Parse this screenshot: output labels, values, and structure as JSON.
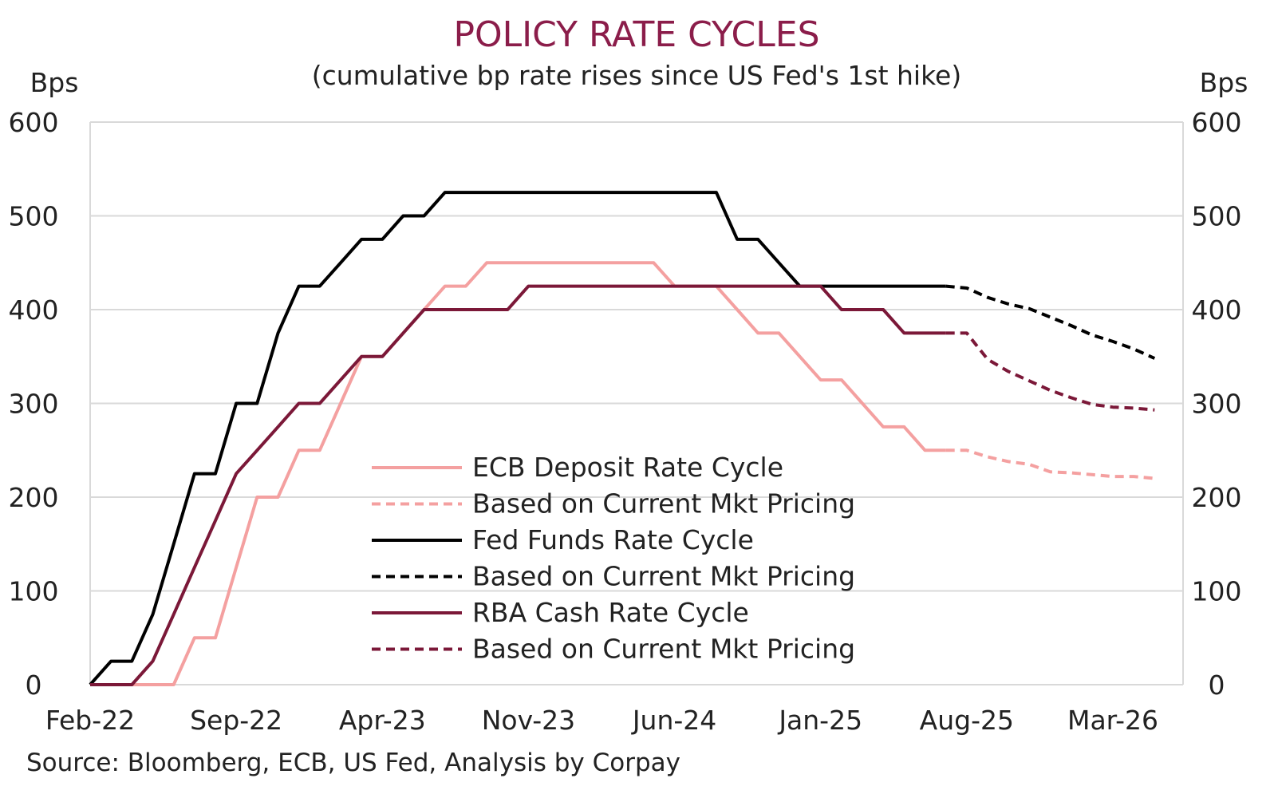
{
  "chart_data": {
    "type": "line",
    "title": "POLICY RATE CYCLES",
    "subtitle": "(cumulative bp rate rises since US Fed's 1st hike)",
    "ylabel_left": "Bps",
    "ylabel_right": "Bps",
    "ylim": [
      0,
      600
    ],
    "yticks": [
      0,
      100,
      200,
      300,
      400,
      500,
      600
    ],
    "xlim": [
      "2022-02",
      "2026-05"
    ],
    "xticks": [
      "Feb-22",
      "Sep-22",
      "Apr-23",
      "Nov-23",
      "Jun-24",
      "Jan-25",
      "Aug-25",
      "Mar-26"
    ],
    "grid": true,
    "legend_position": "center-bottom",
    "source": "Source: Bloomberg, ECB, US Fed, Analysis by Corpay",
    "series": [
      {
        "name": "ECB Deposit Rate Cycle",
        "color": "#f4a0a0",
        "style": "solid",
        "points": [
          [
            "2022-02",
            0
          ],
          [
            "2022-03",
            0
          ],
          [
            "2022-04",
            0
          ],
          [
            "2022-05",
            0
          ],
          [
            "2022-06",
            0
          ],
          [
            "2022-07",
            50
          ],
          [
            "2022-08",
            50
          ],
          [
            "2022-09",
            125
          ],
          [
            "2022-10",
            200
          ],
          [
            "2022-11",
            200
          ],
          [
            "2022-12",
            250
          ],
          [
            "2023-01",
            250
          ],
          [
            "2023-02",
            300
          ],
          [
            "2023-03",
            350
          ],
          [
            "2023-04",
            350
          ],
          [
            "2023-05",
            375
          ],
          [
            "2023-06",
            400
          ],
          [
            "2023-07",
            425
          ],
          [
            "2023-08",
            425
          ],
          [
            "2023-09",
            450
          ],
          [
            "2023-10",
            450
          ],
          [
            "2023-11",
            450
          ],
          [
            "2023-12",
            450
          ],
          [
            "2024-01",
            450
          ],
          [
            "2024-02",
            450
          ],
          [
            "2024-03",
            450
          ],
          [
            "2024-04",
            450
          ],
          [
            "2024-05",
            450
          ],
          [
            "2024-06",
            425
          ],
          [
            "2024-07",
            425
          ],
          [
            "2024-08",
            425
          ],
          [
            "2024-09",
            400
          ],
          [
            "2024-10",
            375
          ],
          [
            "2024-11",
            375
          ],
          [
            "2024-12",
            350
          ],
          [
            "2025-01",
            325
          ],
          [
            "2025-02",
            325
          ],
          [
            "2025-03",
            300
          ],
          [
            "2025-04",
            275
          ],
          [
            "2025-05",
            275
          ],
          [
            "2025-06",
            250
          ],
          [
            "2025-07",
            250
          ]
        ]
      },
      {
        "name": "Based on Current Mkt Pricing",
        "color": "#f4a0a0",
        "style": "dashed",
        "points": [
          [
            "2025-07",
            250
          ],
          [
            "2025-08",
            250
          ],
          [
            "2025-09",
            243
          ],
          [
            "2025-10",
            238
          ],
          [
            "2025-11",
            235
          ],
          [
            "2025-12",
            227
          ],
          [
            "2026-01",
            226
          ],
          [
            "2026-02",
            224
          ],
          [
            "2026-03",
            222
          ],
          [
            "2026-04",
            222
          ],
          [
            "2026-05",
            220
          ]
        ]
      },
      {
        "name": "Fed Funds Rate Cycle",
        "color": "#000000",
        "style": "solid",
        "points": [
          [
            "2022-02",
            0
          ],
          [
            "2022-03",
            25
          ],
          [
            "2022-04",
            25
          ],
          [
            "2022-05",
            75
          ],
          [
            "2022-06",
            150
          ],
          [
            "2022-07",
            225
          ],
          [
            "2022-08",
            225
          ],
          [
            "2022-09",
            300
          ],
          [
            "2022-10",
            300
          ],
          [
            "2022-11",
            375
          ],
          [
            "2022-12",
            425
          ],
          [
            "2023-01",
            425
          ],
          [
            "2023-02",
            450
          ],
          [
            "2023-03",
            475
          ],
          [
            "2023-04",
            475
          ],
          [
            "2023-05",
            500
          ],
          [
            "2023-06",
            500
          ],
          [
            "2023-07",
            525
          ],
          [
            "2023-08",
            525
          ],
          [
            "2023-09",
            525
          ],
          [
            "2023-10",
            525
          ],
          [
            "2023-11",
            525
          ],
          [
            "2023-12",
            525
          ],
          [
            "2024-01",
            525
          ],
          [
            "2024-02",
            525
          ],
          [
            "2024-03",
            525
          ],
          [
            "2024-04",
            525
          ],
          [
            "2024-05",
            525
          ],
          [
            "2024-06",
            525
          ],
          [
            "2024-07",
            525
          ],
          [
            "2024-08",
            525
          ],
          [
            "2024-09",
            475
          ],
          [
            "2024-10",
            475
          ],
          [
            "2024-11",
            450
          ],
          [
            "2024-12",
            425
          ],
          [
            "2025-01",
            425
          ],
          [
            "2025-02",
            425
          ],
          [
            "2025-03",
            425
          ],
          [
            "2025-04",
            425
          ],
          [
            "2025-05",
            425
          ],
          [
            "2025-06",
            425
          ],
          [
            "2025-07",
            425
          ]
        ]
      },
      {
        "name": "Based on Current Mkt Pricing",
        "color": "#000000",
        "style": "dashed",
        "points": [
          [
            "2025-07",
            425
          ],
          [
            "2025-08",
            423
          ],
          [
            "2025-09",
            413
          ],
          [
            "2025-10",
            406
          ],
          [
            "2025-11",
            401
          ],
          [
            "2025-12",
            392
          ],
          [
            "2026-01",
            383
          ],
          [
            "2026-02",
            373
          ],
          [
            "2026-03",
            366
          ],
          [
            "2026-04",
            358
          ],
          [
            "2026-05",
            348
          ]
        ]
      },
      {
        "name": "RBA Cash Rate Cycle",
        "color": "#7b1838",
        "style": "solid",
        "points": [
          [
            "2022-02",
            0
          ],
          [
            "2022-03",
            0
          ],
          [
            "2022-04",
            0
          ],
          [
            "2022-05",
            25
          ],
          [
            "2022-06",
            75
          ],
          [
            "2022-07",
            125
          ],
          [
            "2022-08",
            175
          ],
          [
            "2022-09",
            225
          ],
          [
            "2022-10",
            250
          ],
          [
            "2022-11",
            275
          ],
          [
            "2022-12",
            300
          ],
          [
            "2023-01",
            300
          ],
          [
            "2023-02",
            325
          ],
          [
            "2023-03",
            350
          ],
          [
            "2023-04",
            350
          ],
          [
            "2023-05",
            375
          ],
          [
            "2023-06",
            400
          ],
          [
            "2023-07",
            400
          ],
          [
            "2023-08",
            400
          ],
          [
            "2023-09",
            400
          ],
          [
            "2023-10",
            400
          ],
          [
            "2023-11",
            425
          ],
          [
            "2023-12",
            425
          ],
          [
            "2024-01",
            425
          ],
          [
            "2024-02",
            425
          ],
          [
            "2024-03",
            425
          ],
          [
            "2024-04",
            425
          ],
          [
            "2024-05",
            425
          ],
          [
            "2024-06",
            425
          ],
          [
            "2024-07",
            425
          ],
          [
            "2024-08",
            425
          ],
          [
            "2024-09",
            425
          ],
          [
            "2024-10",
            425
          ],
          [
            "2024-11",
            425
          ],
          [
            "2024-12",
            425
          ],
          [
            "2025-01",
            425
          ],
          [
            "2025-02",
            400
          ],
          [
            "2025-03",
            400
          ],
          [
            "2025-04",
            400
          ],
          [
            "2025-05",
            375
          ],
          [
            "2025-06",
            375
          ],
          [
            "2025-07",
            375
          ]
        ]
      },
      {
        "name": "Based on Current Mkt Pricing",
        "color": "#7b1838",
        "style": "dashed",
        "points": [
          [
            "2025-07",
            375
          ],
          [
            "2025-08",
            375
          ],
          [
            "2025-09",
            347
          ],
          [
            "2025-10",
            334
          ],
          [
            "2025-11",
            324
          ],
          [
            "2025-12",
            314
          ],
          [
            "2026-01",
            306
          ],
          [
            "2026-02",
            299
          ],
          [
            "2026-03",
            296
          ],
          [
            "2026-04",
            295
          ],
          [
            "2026-05",
            293
          ]
        ]
      }
    ]
  }
}
